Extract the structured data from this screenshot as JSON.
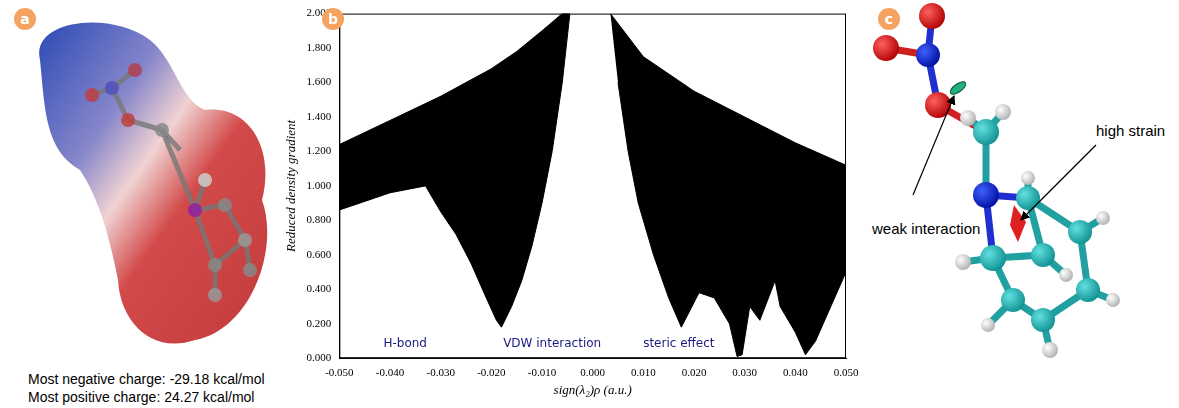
{
  "panel_labels": [
    "a",
    "b",
    "c"
  ],
  "panel_a": {
    "annotations": [
      "Most negative charge: -29.18 kcal/mol",
      "Most positive charge: 24.27 kcal/mol"
    ]
  },
  "chart_data": {
    "type": "area",
    "x_label": "sign(λ₂)ρ (a.u.)",
    "y_label": "Reduced density gradient",
    "xlim": [
      -0.05,
      0.05
    ],
    "xticks": [
      {
        "value": -0.05,
        "label": "-0.050"
      },
      {
        "value": -0.04,
        "label": "-0.040"
      },
      {
        "value": -0.03,
        "label": "-0.030"
      },
      {
        "value": -0.02,
        "label": "-0.020"
      },
      {
        "value": -0.01,
        "label": "-0.010"
      },
      {
        "value": 0,
        "label": "0.000"
      },
      {
        "value": 0.01,
        "label": "0.010"
      },
      {
        "value": 0.02,
        "label": "0.020"
      },
      {
        "value": 0.03,
        "label": "0.030"
      },
      {
        "value": 0.04,
        "label": "0.040"
      },
      {
        "value": 0.05,
        "label": "0.050"
      }
    ],
    "ylim": [
      0,
      2
    ],
    "yticks": [
      {
        "value": 0,
        "label": "0.000"
      },
      {
        "value": 0.2,
        "label": "0.200"
      },
      {
        "value": 0.4,
        "label": "0.400"
      },
      {
        "value": 0.6,
        "label": "0.600"
      },
      {
        "value": 0.8,
        "label": "0.800"
      },
      {
        "value": 1,
        "label": "1.000"
      },
      {
        "value": 1.2,
        "label": "1.200"
      },
      {
        "value": 1.4,
        "label": "1.400"
      },
      {
        "value": 1.6,
        "label": "1.600"
      },
      {
        "value": 1.8,
        "label": "1.800"
      },
      {
        "value": 2,
        "label": "2.000"
      }
    ],
    "grid": false,
    "series": [
      {
        "color": "#000000",
        "x": [
          -0.05,
          -0.04,
          -0.03,
          -0.02,
          -0.015,
          -0.01,
          -0.006,
          -0.0045,
          -0.006,
          -0.008,
          -0.01,
          -0.012,
          -0.014,
          -0.016,
          -0.018,
          -0.019,
          -0.021,
          -0.024,
          -0.027,
          -0.03,
          -0.033,
          -0.04,
          -0.045,
          -0.05
        ],
        "values": [
          1.24,
          1.38,
          1.52,
          1.68,
          1.78,
          1.9,
          2.0,
          2.0,
          1.6,
          1.2,
          0.9,
          0.65,
          0.45,
          0.3,
          0.18,
          0.22,
          0.35,
          0.55,
          0.72,
          0.85,
          1.0,
          0.96,
          0.91,
          0.86
        ]
      },
      {
        "color": "#000000",
        "x": [
          0.0035,
          0.01,
          0.02,
          0.03,
          0.04,
          0.05,
          0.05,
          0.047,
          0.044,
          0.042,
          0.04,
          0.037,
          0.036,
          0.033,
          0.031,
          0.0295,
          0.0285,
          0.027,
          0.024,
          0.021,
          0.0175,
          0.015,
          0.012,
          0.009,
          0.007,
          0.005
        ],
        "values": [
          2.0,
          1.75,
          1.55,
          1.4,
          1.25,
          1.12,
          0.5,
          0.3,
          0.1,
          0.02,
          0.15,
          0.3,
          0.45,
          0.22,
          0.3,
          0.02,
          0.01,
          0.2,
          0.35,
          0.38,
          0.18,
          0.35,
          0.6,
          0.9,
          1.2,
          1.6
        ]
      }
    ],
    "annotations": [
      {
        "text": "H-bond",
        "x": -0.037,
        "y": 0.05,
        "color": "#1a1a80"
      },
      {
        "text": "VDW interaction",
        "x": -0.008,
        "y": 0.05,
        "color": "#1a1a80"
      },
      {
        "text": "steric effect",
        "x": 0.017,
        "y": 0.05,
        "color": "#1a1a80"
      }
    ]
  },
  "panel_c": {
    "annotations": [
      "weak interaction",
      "high strain"
    ]
  }
}
